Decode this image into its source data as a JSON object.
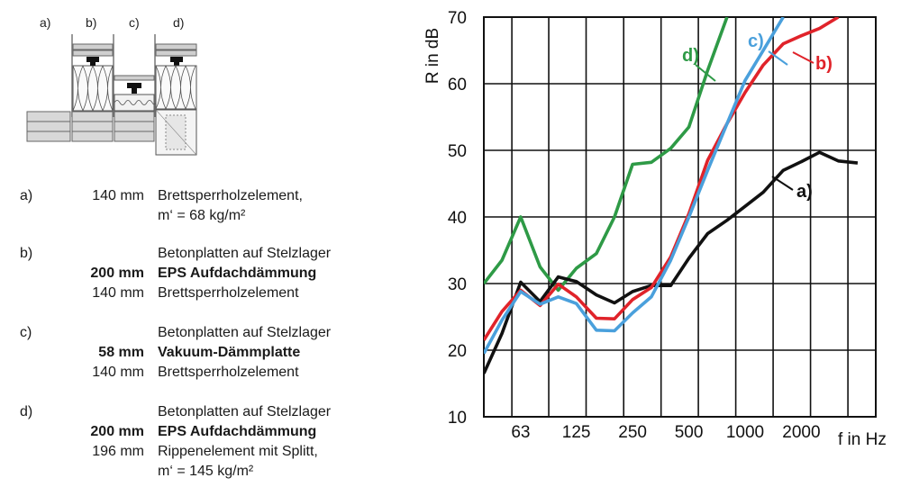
{
  "diagram": {
    "labels": [
      "a)",
      "b)",
      "c)",
      "d)"
    ]
  },
  "legend": [
    {
      "letter": "a)",
      "rows": [
        {
          "thickness": "140 mm",
          "text": "Brettsperrholzelement,",
          "bold": false
        },
        {
          "thickness": "",
          "text": "m‘ = 68 kg/m²",
          "bold": false
        }
      ]
    },
    {
      "letter": "b)",
      "rows": [
        {
          "thickness": "",
          "text": "Betonplatten auf Stelzlager",
          "bold": false
        },
        {
          "thickness": "200 mm",
          "text": "EPS Aufdachdämmung",
          "bold": true
        },
        {
          "thickness": "140 mm",
          "text": "Brettsperrholzelement",
          "bold": false
        }
      ]
    },
    {
      "letter": "c)",
      "rows": [
        {
          "thickness": "",
          "text": "Betonplatten auf Stelzlager",
          "bold": false
        },
        {
          "thickness": "58 mm",
          "text": "Vakuum-Dämmplatte",
          "bold": true
        },
        {
          "thickness": "140 mm",
          "text": "Brettsperrholzelement",
          "bold": false
        }
      ]
    },
    {
      "letter": "d)",
      "rows": [
        {
          "thickness": "",
          "text": "Betonplatten auf Stelzlager",
          "bold": false
        },
        {
          "thickness": "200 mm",
          "text": "EPS Aufdachdämmung",
          "bold": true
        },
        {
          "thickness": "196 mm",
          "text": "Rippenelement mit Splitt,",
          "bold": false
        },
        {
          "thickness": "",
          "text": "m‘ = 145 kg/m²",
          "bold": false
        }
      ]
    }
  ],
  "chart_data": {
    "type": "line",
    "title": "",
    "xlabel": "f in Hz",
    "ylabel": "R in dB",
    "x_scale": "log",
    "x_tick_labels": [
      "63",
      "125",
      "250",
      "500",
      "1000",
      "2000"
    ],
    "x_ticks": [
      63,
      125,
      250,
      500,
      1000,
      2000
    ],
    "x_range": [
      40,
      5000
    ],
    "y_ticks": [
      10,
      20,
      30,
      40,
      50,
      60,
      70
    ],
    "ylim": [
      10,
      70
    ],
    "grid": true,
    "x": [
      40,
      50,
      63,
      80,
      100,
      125,
      160,
      200,
      250,
      315,
      400,
      500,
      630,
      800,
      1000,
      1250,
      1600,
      2000,
      2500,
      3150,
      4000,
      5000
    ],
    "series": [
      {
        "name": "a)",
        "color": "#111111",
        "values": [
          16.5,
          22.5,
          30.2,
          27.3,
          31.0,
          30.3,
          28.3,
          27.1,
          28.8,
          29.7,
          29.7,
          33.8,
          37.5,
          39.5,
          41.6,
          43.7,
          47.0,
          48.3,
          49.7,
          48.4,
          48.1,
          null
        ]
      },
      {
        "name": "b)",
        "color": "#e0232a",
        "values": [
          21.5,
          25.8,
          29.0,
          26.7,
          29.9,
          28.0,
          24.8,
          24.7,
          27.6,
          29.4,
          34.0,
          40.5,
          48.5,
          54.0,
          58.7,
          62.8,
          66.0,
          67.2,
          68.3,
          70.0,
          null,
          null
        ]
      },
      {
        "name": "c)",
        "color": "#4aa0dc",
        "values": [
          19.5,
          24.5,
          28.8,
          26.9,
          28.0,
          27.0,
          23.0,
          22.9,
          25.6,
          28.0,
          33.5,
          40.0,
          47.0,
          54.0,
          60.5,
          65.0,
          70.0,
          null,
          null,
          null,
          null,
          null
        ]
      },
      {
        "name": "d)",
        "color": "#2e9a46",
        "values": [
          30.0,
          33.5,
          40.0,
          32.5,
          29.0,
          32.3,
          34.5,
          40.0,
          47.9,
          48.2,
          50.3,
          53.5,
          62.0,
          70.0,
          null,
          null,
          null,
          null,
          null,
          null,
          null,
          null
        ]
      }
    ]
  }
}
